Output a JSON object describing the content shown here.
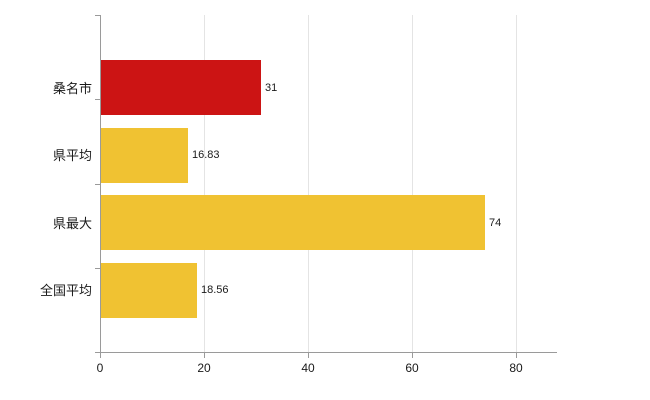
{
  "chart_data": {
    "type": "bar",
    "orientation": "horizontal",
    "title": "",
    "xlabel": "",
    "ylabel": "",
    "categories": [
      "桑名市",
      "県平均",
      "県最大",
      "全国平均"
    ],
    "values": [
      31,
      16.83,
      74,
      18.56
    ],
    "value_labels": [
      "31",
      "16.83",
      "74",
      "18.56"
    ],
    "bar_colors": [
      "#cc1414",
      "#f0c232",
      "#f0c232",
      "#f0c232"
    ],
    "x_ticks": [
      0,
      20,
      40,
      60,
      80
    ],
    "x_tick_labels": [
      "0",
      "20",
      "40",
      "60",
      "80"
    ],
    "xlim": [
      0,
      87.9
    ],
    "grid": true,
    "legend": false,
    "background": "#ffffff"
  },
  "colors": {
    "highlight_bar": "#cc1414",
    "default_bar": "#f0c232",
    "gridline": "#e4e4e4",
    "axis": "#9a9a9a",
    "text": "#1a1a1a"
  }
}
